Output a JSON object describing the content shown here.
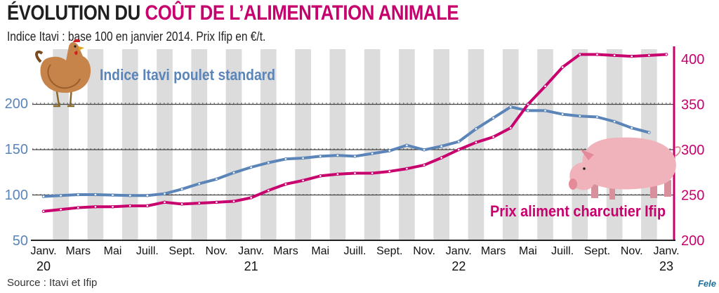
{
  "title": {
    "part1": "ÉVOLUTION DU ",
    "part2": "COÛT DE L’ALIMENTATION ANIMALE"
  },
  "subtitle": "Indice Itavi : base 100 en janvier 2014. Prix Ifip en €/t.",
  "source": "Source : Itavi et Ifip",
  "logo": "Fele",
  "colors": {
    "itavi": "#5b85b8",
    "ifip": "#c8006e",
    "band": "#dcdcdc"
  },
  "chart_data": {
    "type": "line",
    "x": [
      "2020-01",
      "2020-02",
      "2020-03",
      "2020-04",
      "2020-05",
      "2020-06",
      "2020-07",
      "2020-08",
      "2020-09",
      "2020-10",
      "2020-11",
      "2020-12",
      "2021-01",
      "2021-02",
      "2021-03",
      "2021-04",
      "2021-05",
      "2021-06",
      "2021-07",
      "2021-08",
      "2021-09",
      "2021-10",
      "2021-11",
      "2021-12",
      "2022-01",
      "2022-02",
      "2022-03",
      "2022-04",
      "2022-05",
      "2022-06",
      "2022-07",
      "2022-08",
      "2022-09",
      "2022-10",
      "2022-11",
      "2022-12",
      "2023-01"
    ],
    "x_tick_labels": [
      "Janv.",
      "Mars",
      "Mai",
      "Juill.",
      "Sept.",
      "Nov.",
      "Janv.",
      "Mars",
      "Mai",
      "Juill.",
      "Sept.",
      "Nov.",
      "Janv.",
      "Mars",
      "Mai",
      "Juill.",
      "Sept.",
      "Nov.",
      "Janv."
    ],
    "x_year_labels": [
      {
        "month": "2020-01",
        "label": "20"
      },
      {
        "month": "2021-01",
        "label": "21"
      },
      {
        "month": "2022-01",
        "label": "22"
      },
      {
        "month": "2023-01",
        "label": "23"
      }
    ],
    "y_left": {
      "ticks": [
        50,
        100,
        150,
        200
      ],
      "range": [
        50,
        205
      ]
    },
    "y_right": {
      "ticks": [
        200,
        250,
        300,
        350,
        400
      ],
      "range": [
        200,
        410
      ]
    },
    "series": [
      {
        "name": "Indice Itavi poulet standard",
        "axis": "left",
        "values": [
          98,
          99,
          100,
          100,
          99.5,
          99,
          99,
          101,
          106,
          112,
          117,
          124,
          130,
          135,
          139,
          140,
          142,
          143,
          142,
          145,
          148,
          154,
          149,
          153,
          158,
          172,
          184,
          196,
          192,
          192,
          188,
          186,
          185,
          180,
          173,
          168,
          null
        ]
      },
      {
        "name": "Prix aliment charcutier Ifip",
        "axis": "right",
        "values": [
          232,
          234,
          236,
          237,
          237,
          238,
          238,
          242,
          240,
          241,
          242,
          243,
          247,
          255,
          262,
          266,
          271,
          273,
          274,
          274,
          276,
          279,
          283,
          291,
          300,
          308,
          314,
          324,
          350,
          370,
          391,
          405,
          405,
          404,
          403,
          404,
          405
        ]
      }
    ]
  }
}
